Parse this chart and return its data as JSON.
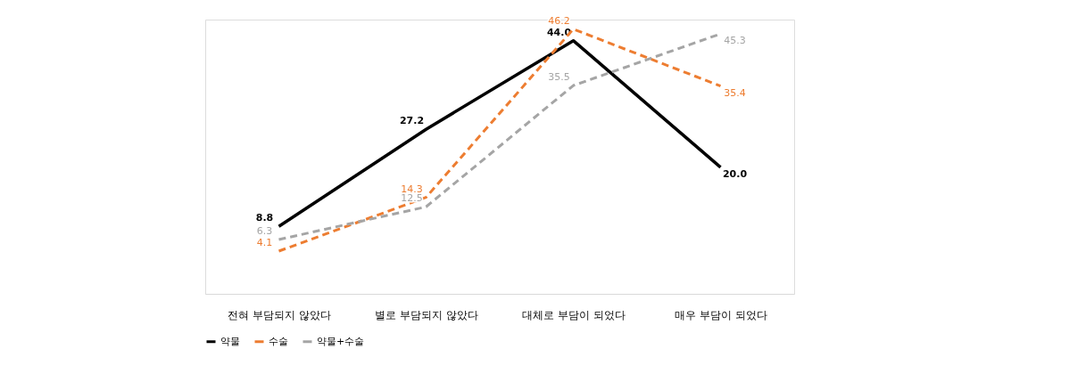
{
  "chart_data": {
    "type": "line",
    "categories": [
      "전혀 부담되지 않았다",
      "별로 부담되지 않았다",
      "대체로 부담이 되었다",
      "매우 부담이 되었다"
    ],
    "series": [
      {
        "name": "약물",
        "color": "#000000",
        "line_style": "solid",
        "values": [
          8.8,
          27.2,
          44.0,
          20.0
        ],
        "value_labels": [
          "8.8",
          "27.2",
          "44.0",
          "20.0"
        ]
      },
      {
        "name": "수술",
        "color": "#ed7d31",
        "line_style": "dashed",
        "values": [
          4.1,
          14.3,
          46.2,
          35.4
        ],
        "value_labels": [
          "4.1",
          "14.3",
          "46.2",
          "35.4"
        ]
      },
      {
        "name": "약물+수술",
        "color": "#a5a5a5",
        "line_style": "dashed",
        "values": [
          6.3,
          12.5,
          35.5,
          45.3
        ],
        "value_labels": [
          "6.3",
          "12.5",
          "35.5",
          "45.3"
        ]
      }
    ],
    "ylim": [
      -4,
      48
    ],
    "legend": "bottom",
    "grid": false,
    "tick_labels": "x",
    "marker": "none"
  }
}
